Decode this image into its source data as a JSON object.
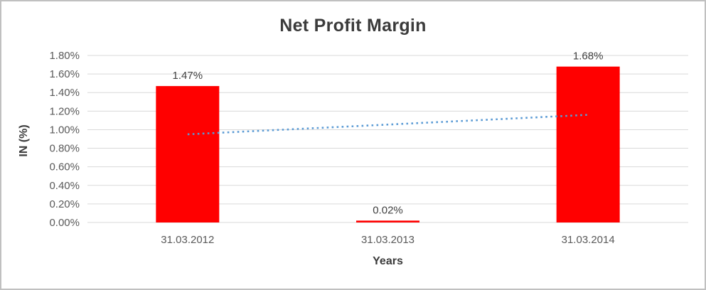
{
  "window": {
    "background": "#ffffff",
    "border_color": "#c0c0c0"
  },
  "chart_data": {
    "type": "bar",
    "title": "Net Profit Margin",
    "xlabel": "Years",
    "ylabel": "IN (%)",
    "categories": [
      "31.03.2012",
      "31.03.2013",
      "31.03.2014"
    ],
    "series": [
      {
        "name": "Net Profit Margin",
        "values": [
          1.47,
          0.02,
          1.68
        ],
        "unit": "%",
        "color": "#ff0000",
        "data_labels": [
          "1.47%",
          "0.02%",
          "1.68%"
        ]
      }
    ],
    "trendline": {
      "type": "linear",
      "style": "dotted",
      "color": "#5b9bd5",
      "start_value": 0.95,
      "end_value": 1.16
    },
    "ylim": [
      0,
      1.8
    ],
    "ytick_step": 0.2,
    "ytick_labels": [
      "0.00%",
      "0.20%",
      "0.40%",
      "0.60%",
      "0.80%",
      "1.00%",
      "1.20%",
      "1.40%",
      "1.60%",
      "1.80%"
    ],
    "grid": true,
    "legend": "none",
    "colors": {
      "gridline": "#d9d9d9",
      "tick_text": "#595959",
      "value_label_text": "#404040",
      "title_text": "#3b3b3b"
    }
  }
}
